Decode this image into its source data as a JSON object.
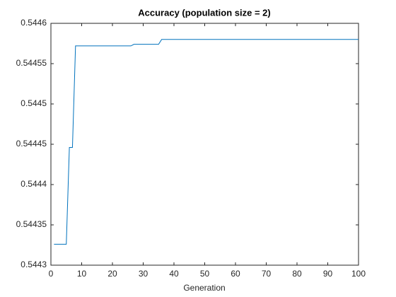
{
  "chart_data": {
    "type": "line",
    "title": "Accuracy (population size = 2)",
    "x_label": "Generation",
    "x": [
      1,
      5,
      6,
      7,
      8,
      26,
      27,
      35,
      36,
      100
    ],
    "series": [
      {
        "color": "#0072bd",
        "values": [
          0.544326,
          0.544326,
          0.544446,
          0.544446,
          0.544572,
          0.544572,
          0.544574,
          0.544574,
          0.54458,
          0.54458
        ]
      }
    ],
    "xlim": [
      0,
      100
    ],
    "xticks": [
      0,
      10,
      20,
      30,
      40,
      50,
      60,
      70,
      80,
      90,
      100
    ],
    "ylim": [
      0.5443,
      0.5446
    ],
    "yticks": [
      0.5443,
      0.54435,
      0.5444,
      0.54445,
      0.5445,
      0.54455,
      0.5446
    ],
    "grid": false
  }
}
